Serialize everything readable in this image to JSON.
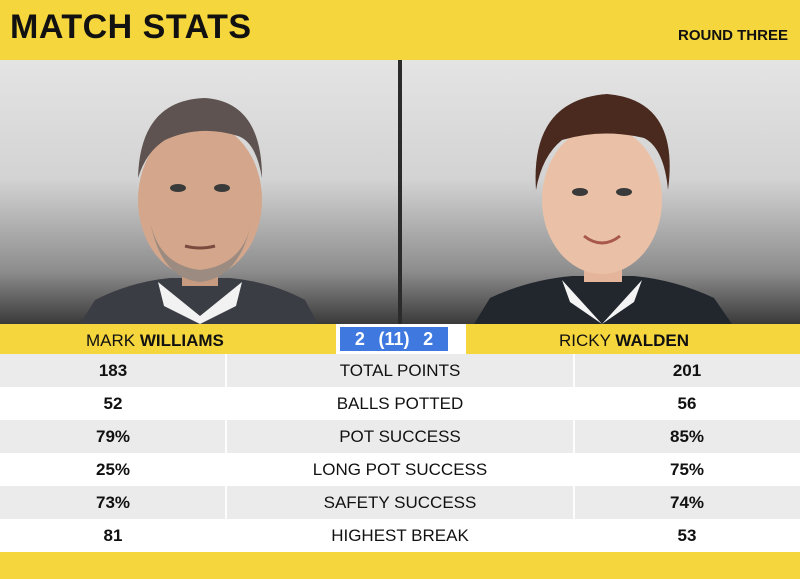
{
  "header": {
    "title": "MATCH STATS",
    "round": "ROUND THREE"
  },
  "players": {
    "left": {
      "first": "MARK",
      "last": "WILLIAMS"
    },
    "right": {
      "first": "RICKY",
      "last": "WALDEN"
    }
  },
  "score": {
    "left": "2",
    "frames": "(11)",
    "right": "2"
  },
  "stats": [
    {
      "left": "183",
      "label": "TOTAL POINTS",
      "right": "201"
    },
    {
      "left": "52",
      "label": "BALLS POTTED",
      "right": "56"
    },
    {
      "left": "79%",
      "label": "POT SUCCESS",
      "right": "85%"
    },
    {
      "left": "25%",
      "label": "LONG POT SUCCESS",
      "right": "75%"
    },
    {
      "left": "73%",
      "label": "SAFETY SUCCESS",
      "right": "74%"
    },
    {
      "left": "81",
      "label": "HIGHEST BREAK",
      "right": "53"
    }
  ],
  "colors": {
    "accent": "#f5d63d",
    "score_blue": "#3f79e0"
  }
}
